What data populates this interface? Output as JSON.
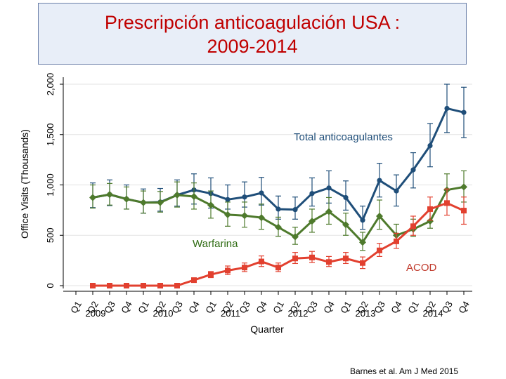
{
  "title": {
    "line1": "Prescripción anticoagulación USA :",
    "line2": "2009-2014"
  },
  "citation": "Barnes et al. Am J Med 2015",
  "chart_data": {
    "type": "line",
    "ylabel": "Office Visits (Thousands)",
    "xlabel": "Quarter",
    "ylim": [
      0,
      2000
    ],
    "yticks": [
      "0",
      "500",
      "1,000",
      "1,500",
      "2,000"
    ],
    "ytick_values": [
      0,
      500,
      1000,
      1500,
      2000
    ],
    "categories": [
      "Q1",
      "Q2",
      "Q3",
      "Q4",
      "Q1",
      "Q2",
      "Q3",
      "Q4",
      "Q1",
      "Q2",
      "Q3",
      "Q4",
      "Q1",
      "Q2",
      "Q3",
      "Q4",
      "Q1",
      "Q2",
      "Q3",
      "Q4",
      "Q1",
      "Q2",
      "Q3",
      "Q4"
    ],
    "years": [
      "2009",
      "2010",
      "2011",
      "2012",
      "2013",
      "2014"
    ],
    "series": [
      {
        "name": "Total anticoagulantes",
        "color": "#1f4e79",
        "marker": "circle",
        "values": [
          null,
          875,
          905,
          860,
          825,
          830,
          900,
          950,
          915,
          855,
          880,
          920,
          760,
          755,
          915,
          970,
          875,
          650,
          1045,
          940,
          1150,
          1390,
          1760,
          1720
        ],
        "lower": [
          null,
          775,
          795,
          760,
          720,
          740,
          790,
          810,
          770,
          760,
          780,
          800,
          660,
          660,
          790,
          820,
          750,
          560,
          880,
          790,
          970,
          1180,
          1520,
          1470
        ],
        "upper": [
          null,
          1020,
          1050,
          1000,
          960,
          965,
          1050,
          1110,
          1070,
          1000,
          1030,
          1075,
          890,
          880,
          1070,
          1140,
          1040,
          790,
          1215,
          1100,
          1320,
          1610,
          2000,
          1970
        ]
      },
      {
        "name": "Warfarina",
        "color": "#4e7a2c",
        "marker": "diamond",
        "values": [
          null,
          875,
          905,
          860,
          825,
          825,
          900,
          885,
          800,
          705,
          695,
          675,
          580,
          485,
          640,
          735,
          605,
          430,
          690,
          500,
          560,
          640,
          950,
          980
        ],
        "lower": [
          null,
          770,
          800,
          760,
          720,
          730,
          780,
          760,
          670,
          590,
          580,
          560,
          490,
          410,
          530,
          610,
          500,
          350,
          560,
          420,
          490,
          570,
          800,
          830
        ],
        "upper": [
          null,
          1000,
          1015,
          980,
          940,
          935,
          1030,
          1020,
          940,
          830,
          830,
          810,
          680,
          580,
          760,
          875,
          720,
          530,
          850,
          610,
          660,
          760,
          1110,
          1140
        ]
      },
      {
        "name": "ACOD",
        "color": "#e2402f",
        "marker": "square",
        "values": [
          null,
          0,
          0,
          0,
          0,
          0,
          0,
          55,
          110,
          150,
          180,
          240,
          180,
          270,
          280,
          235,
          270,
          225,
          350,
          440,
          590,
          760,
          820,
          745
        ],
        "lower": [
          null,
          null,
          null,
          null,
          null,
          null,
          null,
          40,
          80,
          110,
          140,
          190,
          140,
          220,
          230,
          190,
          220,
          170,
          290,
          370,
          500,
          650,
          700,
          610
        ],
        "upper": [
          null,
          null,
          null,
          null,
          null,
          null,
          null,
          75,
          140,
          195,
          225,
          295,
          225,
          330,
          340,
          290,
          330,
          285,
          420,
          520,
          690,
          880,
          960,
          880
        ]
      }
    ],
    "annotations": [
      {
        "text": "Total anticoagulantes",
        "color": "#1f4e79"
      },
      {
        "text": "Warfarina",
        "color": "#2e6b12"
      },
      {
        "text": "ACOD",
        "color": "#c0392b"
      }
    ]
  }
}
